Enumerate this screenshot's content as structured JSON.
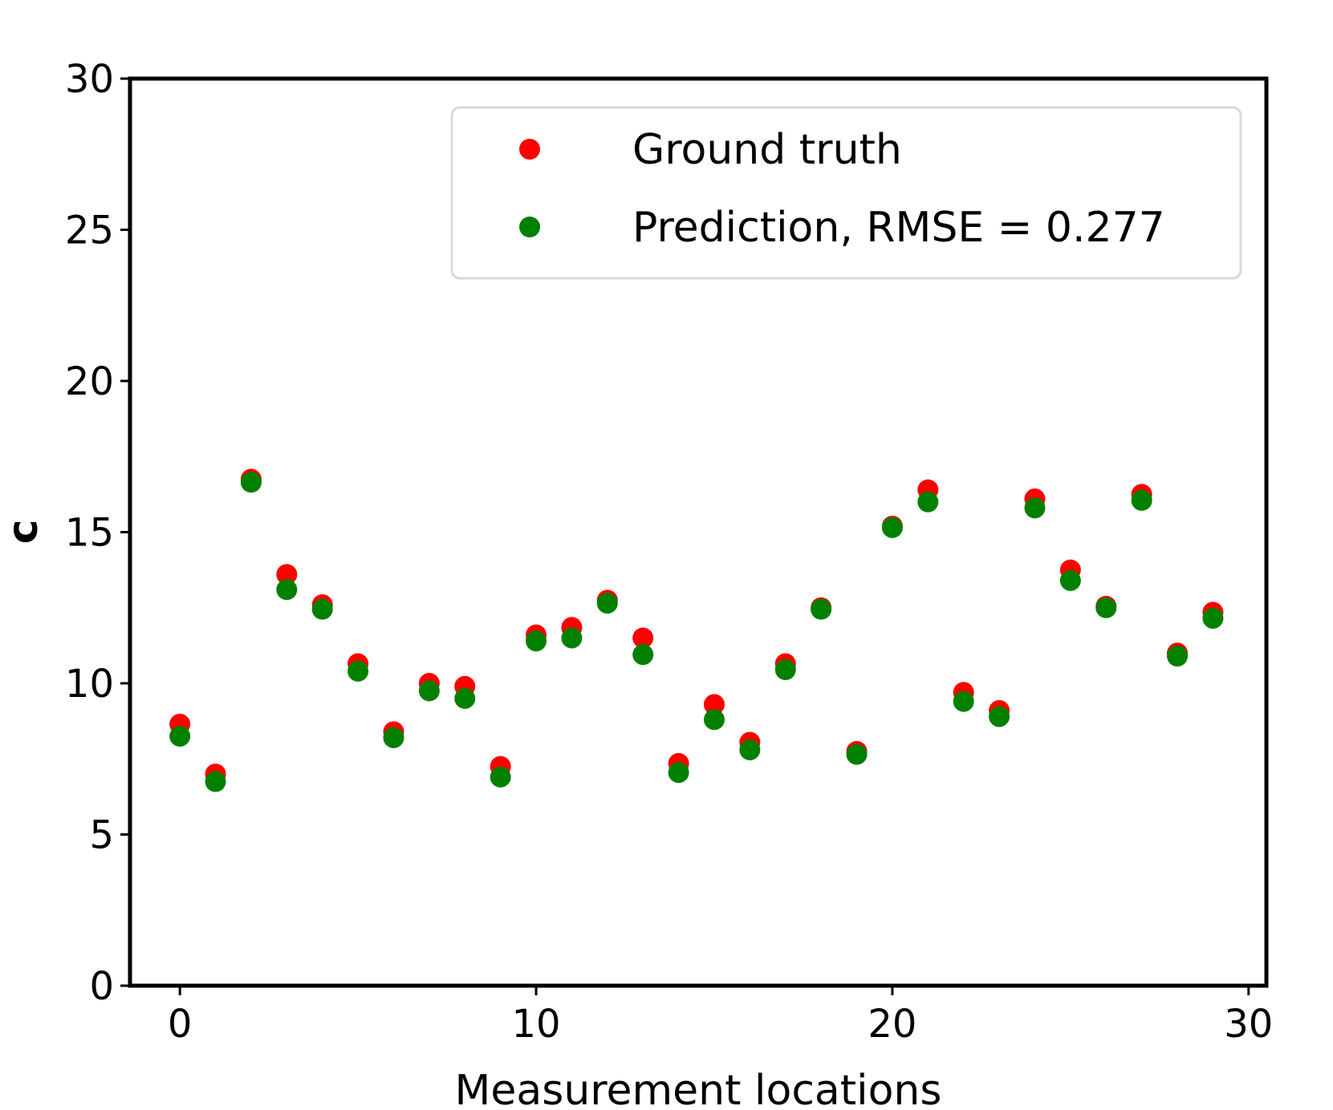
{
  "chart_data": {
    "type": "scatter",
    "title": "",
    "xlabel": "Measurement locations",
    "ylabel": "c",
    "xlim": [
      -1.4,
      30.5
    ],
    "ylim": [
      0,
      30
    ],
    "xticks": [
      0,
      10,
      20,
      30
    ],
    "yticks": [
      0,
      5,
      10,
      15,
      20,
      25,
      30
    ],
    "grid": false,
    "legend_position": "top-right",
    "x": [
      0,
      1,
      2,
      3,
      4,
      5,
      6,
      7,
      8,
      9,
      10,
      11,
      12,
      13,
      14,
      15,
      16,
      17,
      18,
      19,
      20,
      21,
      22,
      23,
      24,
      25,
      26,
      27,
      28,
      29
    ],
    "series": [
      {
        "name": "Ground truth",
        "color": "#ff0000",
        "values": [
          8.65,
          7.0,
          16.75,
          13.6,
          12.6,
          10.65,
          8.4,
          10.0,
          9.9,
          7.25,
          11.6,
          11.85,
          12.75,
          11.5,
          7.35,
          9.3,
          8.05,
          10.65,
          12.5,
          7.75,
          15.2,
          16.4,
          9.7,
          9.1,
          16.1,
          13.75,
          12.55,
          16.25,
          11.0,
          12.35
        ]
      },
      {
        "name": "Prediction, RMSE = 0.277",
        "color": "#008000",
        "values": [
          8.25,
          6.75,
          16.65,
          13.1,
          12.45,
          10.4,
          8.2,
          9.75,
          9.5,
          6.9,
          11.4,
          11.5,
          12.65,
          10.95,
          7.05,
          8.8,
          7.8,
          10.45,
          12.45,
          7.65,
          15.15,
          16.0,
          9.4,
          8.9,
          15.8,
          13.4,
          12.5,
          16.05,
          10.9,
          12.15
        ]
      }
    ]
  }
}
